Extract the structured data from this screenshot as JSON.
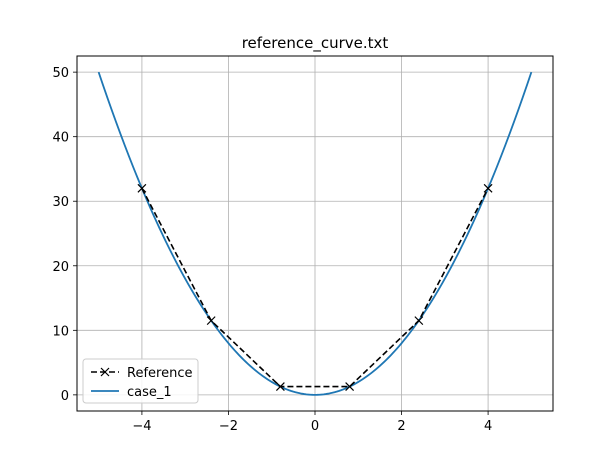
{
  "chart_data": {
    "type": "line",
    "title": "reference_curve.txt",
    "xlabel": "",
    "ylabel": "",
    "xlim": [
      -5.5,
      5.5
    ],
    "ylim": [
      -2.5,
      52.5
    ],
    "x_ticks": [
      -4,
      -2,
      0,
      2,
      4
    ],
    "x_tick_labels": [
      "−4",
      "−2",
      "0",
      "2",
      "4"
    ],
    "y_ticks": [
      0,
      10,
      20,
      30,
      40,
      50
    ],
    "y_tick_labels": [
      "0",
      "10",
      "20",
      "30",
      "40",
      "50"
    ],
    "grid": true,
    "legend_position": "lower-left",
    "series": [
      {
        "name": "Reference",
        "style": "dashed",
        "marker": "x",
        "color": "#000000",
        "x": [
          -4.0,
          -2.4,
          -0.8,
          0.8,
          2.4,
          4.0
        ],
        "y": [
          32.0,
          11.5,
          1.28,
          1.28,
          11.5,
          32.0
        ]
      },
      {
        "name": "case_1",
        "style": "solid",
        "color": "#1f77b4",
        "function": "2*x^2",
        "x_range": [
          -5,
          5
        ]
      }
    ]
  }
}
